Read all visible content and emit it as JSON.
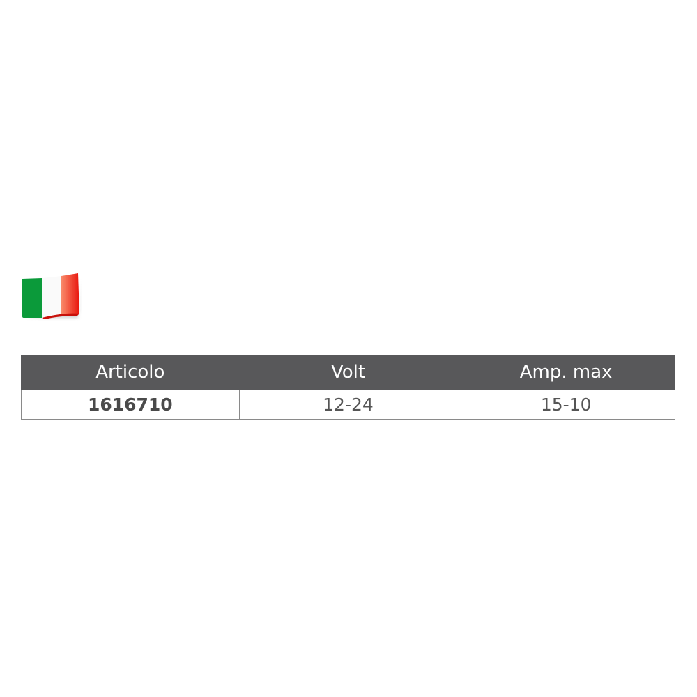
{
  "flag": {
    "icon": "italy-flag-icon",
    "colors": [
      "#009246",
      "#ffffff",
      "#e8291c"
    ]
  },
  "table": {
    "headers": [
      "Articolo",
      "Volt",
      "Amp. max"
    ],
    "rows": [
      [
        "1616710",
        "12-24",
        "15-10"
      ]
    ],
    "header_bg": "#58585a"
  }
}
